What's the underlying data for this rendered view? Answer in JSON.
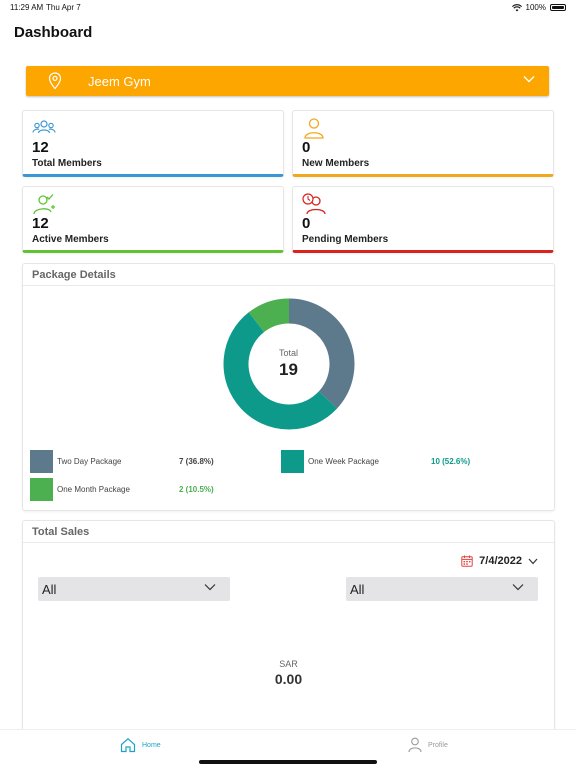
{
  "status_bar": {
    "time": "11:29 AM",
    "date": "Thu Apr 7",
    "battery": "100%"
  },
  "page": {
    "title": "Dashboard"
  },
  "gym_selector": {
    "value": "Jeem Gym",
    "color": "#fda600"
  },
  "stats": [
    {
      "value": "12",
      "label": "Total Members",
      "color": "#3b97d3",
      "icon": "group-icon"
    },
    {
      "value": "0",
      "label": "New Members",
      "color": "#f0a81e",
      "icon": "person-icon"
    },
    {
      "value": "12",
      "label": "Active Members",
      "color": "#62c234",
      "icon": "active-person-icon"
    },
    {
      "value": "0",
      "label": "Pending Members",
      "color": "#d8231e",
      "icon": "pending-person-icon"
    }
  ],
  "package_details": {
    "title": "Package Details",
    "total_label": "Total",
    "total_value": "19",
    "legend": [
      {
        "name": "Two Day Package",
        "value": "7 (36.8%)",
        "color": "#5c7a8c",
        "value_color": "#444444"
      },
      {
        "name": "One Week Package",
        "value": "10 (52.6%)",
        "color": "#0e9a8a",
        "value_color": "#0e9a8a"
      },
      {
        "name": "One Month Package",
        "value": "2 (10.5%)",
        "color": "#4caf50",
        "value_color": "#4caf50"
      }
    ]
  },
  "chart_data": {
    "type": "pie",
    "categories": [
      "Two Day Package",
      "One Week Package",
      "One Month Package"
    ],
    "values": [
      7,
      10,
      2
    ],
    "colors": [
      "#5c7a8c",
      "#0e9a8a",
      "#4caf50"
    ],
    "title": "Package Details",
    "center_label": "Total",
    "center_value": 19
  },
  "total_sales": {
    "title": "Total Sales",
    "date": "7/4/2022",
    "filter_left": "All",
    "filter_right": "All",
    "currency": "SAR",
    "amount": "0.00"
  },
  "tabbar": {
    "home": "Home",
    "profile": "Profile",
    "active_color": "#1ba3c6"
  }
}
